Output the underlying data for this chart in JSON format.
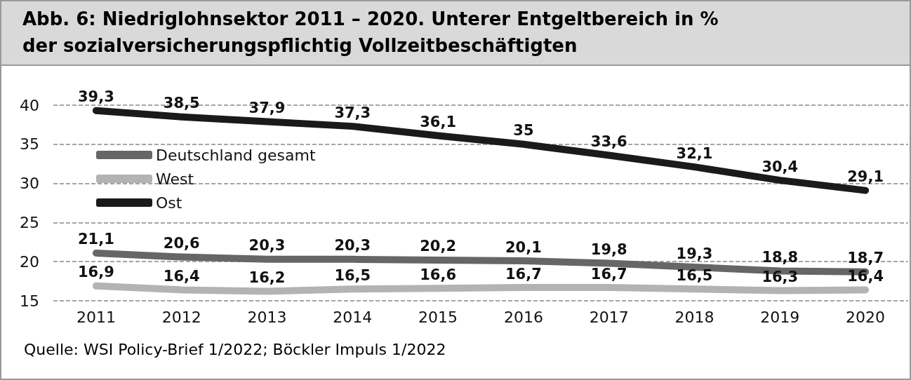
{
  "chart_data": {
    "type": "line",
    "title": "Abb. 6: Niedriglohnsektor 2011 – 2020. Unterer Entgeltbereich in % der sozialversicherungspflichtig Vollzeitbeschäftigten",
    "categories": [
      "2011",
      "2012",
      "2013",
      "2014",
      "2015",
      "2016",
      "2017",
      "2018",
      "2019",
      "2020"
    ],
    "series": [
      {
        "name": "Deutschland gesamt",
        "color": "#666666",
        "values": [
          21.1,
          20.6,
          20.3,
          20.3,
          20.2,
          20.1,
          19.8,
          19.3,
          18.8,
          18.7
        ],
        "value_labels": [
          "21,1",
          "20,6",
          "20,3",
          "20,3",
          "20,2",
          "20,1",
          "19,8",
          "19,3",
          "18,8",
          "18,7"
        ]
      },
      {
        "name": "West",
        "color": "#b3b3b3",
        "values": [
          16.9,
          16.4,
          16.2,
          16.5,
          16.6,
          16.7,
          16.7,
          16.5,
          16.3,
          16.4
        ],
        "value_labels": [
          "16,9",
          "16,4",
          "16,2",
          "16,5",
          "16,6",
          "16,7",
          "16,7",
          "16,5",
          "16,3",
          "16,4"
        ]
      },
      {
        "name": "Ost",
        "color": "#1a1a1a",
        "values": [
          39.3,
          38.5,
          37.9,
          37.3,
          36.1,
          35,
          33.6,
          32.1,
          30.4,
          29.1
        ],
        "value_labels": [
          "39,3",
          "38,5",
          "37,9",
          "37,3",
          "36,1",
          "35",
          "33,6",
          "32,1",
          "30,4",
          "29,1"
        ]
      }
    ],
    "ylim": [
      15,
      40
    ],
    "yticks": [
      15,
      20,
      25,
      30,
      35,
      40
    ],
    "grid": "y",
    "legend": "top left",
    "marker": "none",
    "line_style": "solid",
    "annotations": [
      "Quelle: WSI Policy-Brief 1/2022; Böckler Impuls 1/2022"
    ]
  }
}
